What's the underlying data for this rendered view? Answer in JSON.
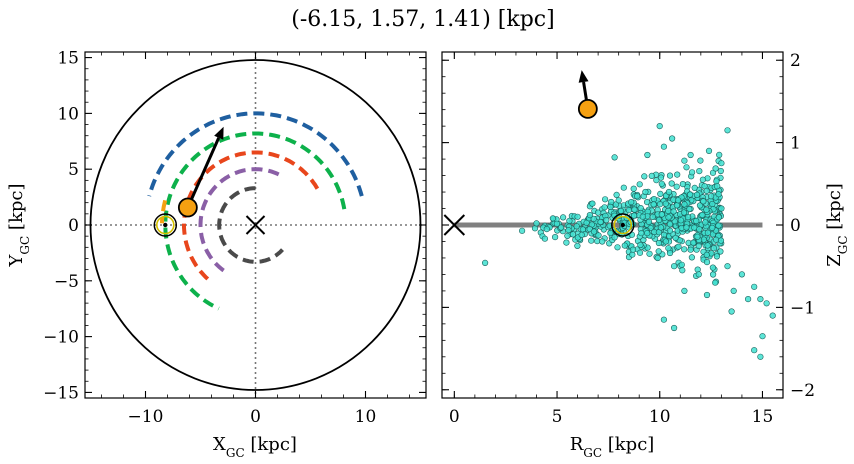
{
  "title": "(-6.15, 1.57, 1.41) [kpc]",
  "chart_data": [
    {
      "type": "line",
      "panel": "left",
      "xlabel": "X",
      "xlabel_sub": "GC",
      "xlabel_unit": " [kpc]",
      "ylabel": "Y",
      "ylabel_sub": "GC",
      "ylabel_unit": " [kpc]",
      "xlim": [
        -15.5,
        15.5
      ],
      "ylim": [
        -15.5,
        15.5
      ],
      "xticks": [
        -10,
        0,
        10
      ],
      "yticks": [
        -15,
        -10,
        -5,
        0,
        5,
        10,
        15
      ],
      "xtick_labels": [
        "−10",
        "0",
        "10"
      ],
      "ytick_labels": [
        "−15",
        "−10",
        "−5",
        "0",
        "5",
        "10",
        "15"
      ],
      "boundary_circle_radius": 15,
      "arcs": [
        {
          "color": "#1f5fa0",
          "radius": 10.0,
          "start_deg": 15,
          "end_deg": 165
        },
        {
          "color": "#0db14b",
          "radius": 8.2,
          "start_deg": 10,
          "end_deg": 246
        },
        {
          "color": "#e8461c",
          "radius": 6.5,
          "start_deg": 30,
          "end_deg": 232
        },
        {
          "color": "#8a5fa6",
          "radius": 5.0,
          "start_deg": 65,
          "end_deg": 235
        },
        {
          "color": "#4a4a4a",
          "radius": 3.3,
          "start_deg": 90,
          "end_deg": 318
        },
        {
          "color": "#f5a011",
          "radius": 8.5,
          "start_deg": 165,
          "end_deg": 180
        }
      ],
      "galactic_center": [
        0,
        0
      ],
      "sun": [
        -8.2,
        0
      ],
      "object": [
        -6.15,
        1.57
      ],
      "velocity_arrow_tip": [
        -2.9,
        8.8
      ],
      "object_color": "#f5a011"
    },
    {
      "type": "scatter",
      "panel": "right",
      "xlabel": "R",
      "xlabel_sub": "GC",
      "xlabel_unit": " [kpc]",
      "ylabel": "Z",
      "ylabel_sub": "GC",
      "ylabel_unit": " [kpc]",
      "xlim": [
        -0.6,
        16.0
      ],
      "ylim": [
        -2.1,
        2.1
      ],
      "xticks": [
        0,
        5,
        10,
        15
      ],
      "yticks": [
        -2,
        -1,
        0,
        1,
        2
      ],
      "xtick_labels": [
        "0",
        "5",
        "10",
        "15"
      ],
      "ytick_labels": [
        "−2",
        "−1",
        "0",
        "1",
        "2"
      ],
      "disk_band": {
        "x": [
          0,
          15
        ],
        "z": 0,
        "color": "#808080"
      },
      "galactic_center": [
        0,
        0
      ],
      "sun": [
        8.2,
        0
      ],
      "object": [
        6.5,
        1.41
      ],
      "velocity_arrow_tip": [
        6.2,
        1.88
      ],
      "point_color": "#40e0d0",
      "points": [
        [
          1.5,
          -0.46
        ],
        [
          3.3,
          -0.07
        ],
        [
          4.0,
          0.02
        ],
        [
          4.5,
          -0.05
        ],
        [
          4.8,
          0.08
        ],
        [
          5.2,
          -0.03
        ],
        [
          5.6,
          0.05
        ],
        [
          6.0,
          0.1
        ],
        [
          6.2,
          -0.12
        ],
        [
          6.6,
          0.12
        ],
        [
          6.8,
          -0.08
        ],
        [
          7.0,
          0.15
        ],
        [
          7.2,
          -0.2
        ],
        [
          7.4,
          0.06
        ],
        [
          7.6,
          0.22
        ],
        [
          7.8,
          -0.15
        ],
        [
          8.0,
          0.3
        ],
        [
          8.3,
          -0.25
        ],
        [
          8.5,
          0.18
        ],
        [
          8.7,
          -0.3
        ],
        [
          8.9,
          0.35
        ],
        [
          9.1,
          -0.1
        ],
        [
          9.3,
          0.4
        ],
        [
          9.5,
          -0.35
        ],
        [
          9.7,
          0.25
        ],
        [
          9.9,
          -0.4
        ],
        [
          10.1,
          0.5
        ],
        [
          10.3,
          -0.2
        ],
        [
          10.5,
          0.6
        ],
        [
          10.7,
          -0.5
        ],
        [
          10.9,
          0.3
        ],
        [
          11.1,
          -0.55
        ],
        [
          11.3,
          0.7
        ],
        [
          11.5,
          -0.3
        ],
        [
          11.7,
          0.45
        ],
        [
          11.9,
          -0.6
        ],
        [
          12.1,
          0.55
        ],
        [
          12.3,
          -0.45
        ],
        [
          12.5,
          0.35
        ],
        [
          12.7,
          -0.7
        ],
        [
          13.0,
          0.2
        ],
        [
          13.3,
          -0.5
        ],
        [
          13.6,
          -0.8
        ],
        [
          14.0,
          -0.6
        ],
        [
          14.3,
          -0.9
        ],
        [
          14.6,
          -0.75
        ],
        [
          14.9,
          -0.9
        ],
        [
          15.2,
          -0.95
        ],
        [
          15.5,
          -1.1
        ],
        [
          15.0,
          -1.35
        ],
        [
          14.6,
          -1.52
        ],
        [
          14.9,
          -1.6
        ],
        [
          13.5,
          -1.05
        ],
        [
          12.3,
          -0.85
        ],
        [
          11.2,
          -0.8
        ],
        [
          10.2,
          -1.15
        ],
        [
          10.7,
          -1.25
        ],
        [
          10.0,
          1.2
        ],
        [
          10.6,
          1.05
        ],
        [
          11.5,
          0.85
        ],
        [
          12.4,
          0.9
        ],
        [
          13.3,
          1.15
        ],
        [
          7.8,
          0.82
        ],
        [
          9.4,
          0.85
        ],
        [
          10.2,
          0.95
        ],
        [
          11.2,
          0.78
        ],
        [
          13.0,
          0.75
        ]
      ]
    }
  ]
}
